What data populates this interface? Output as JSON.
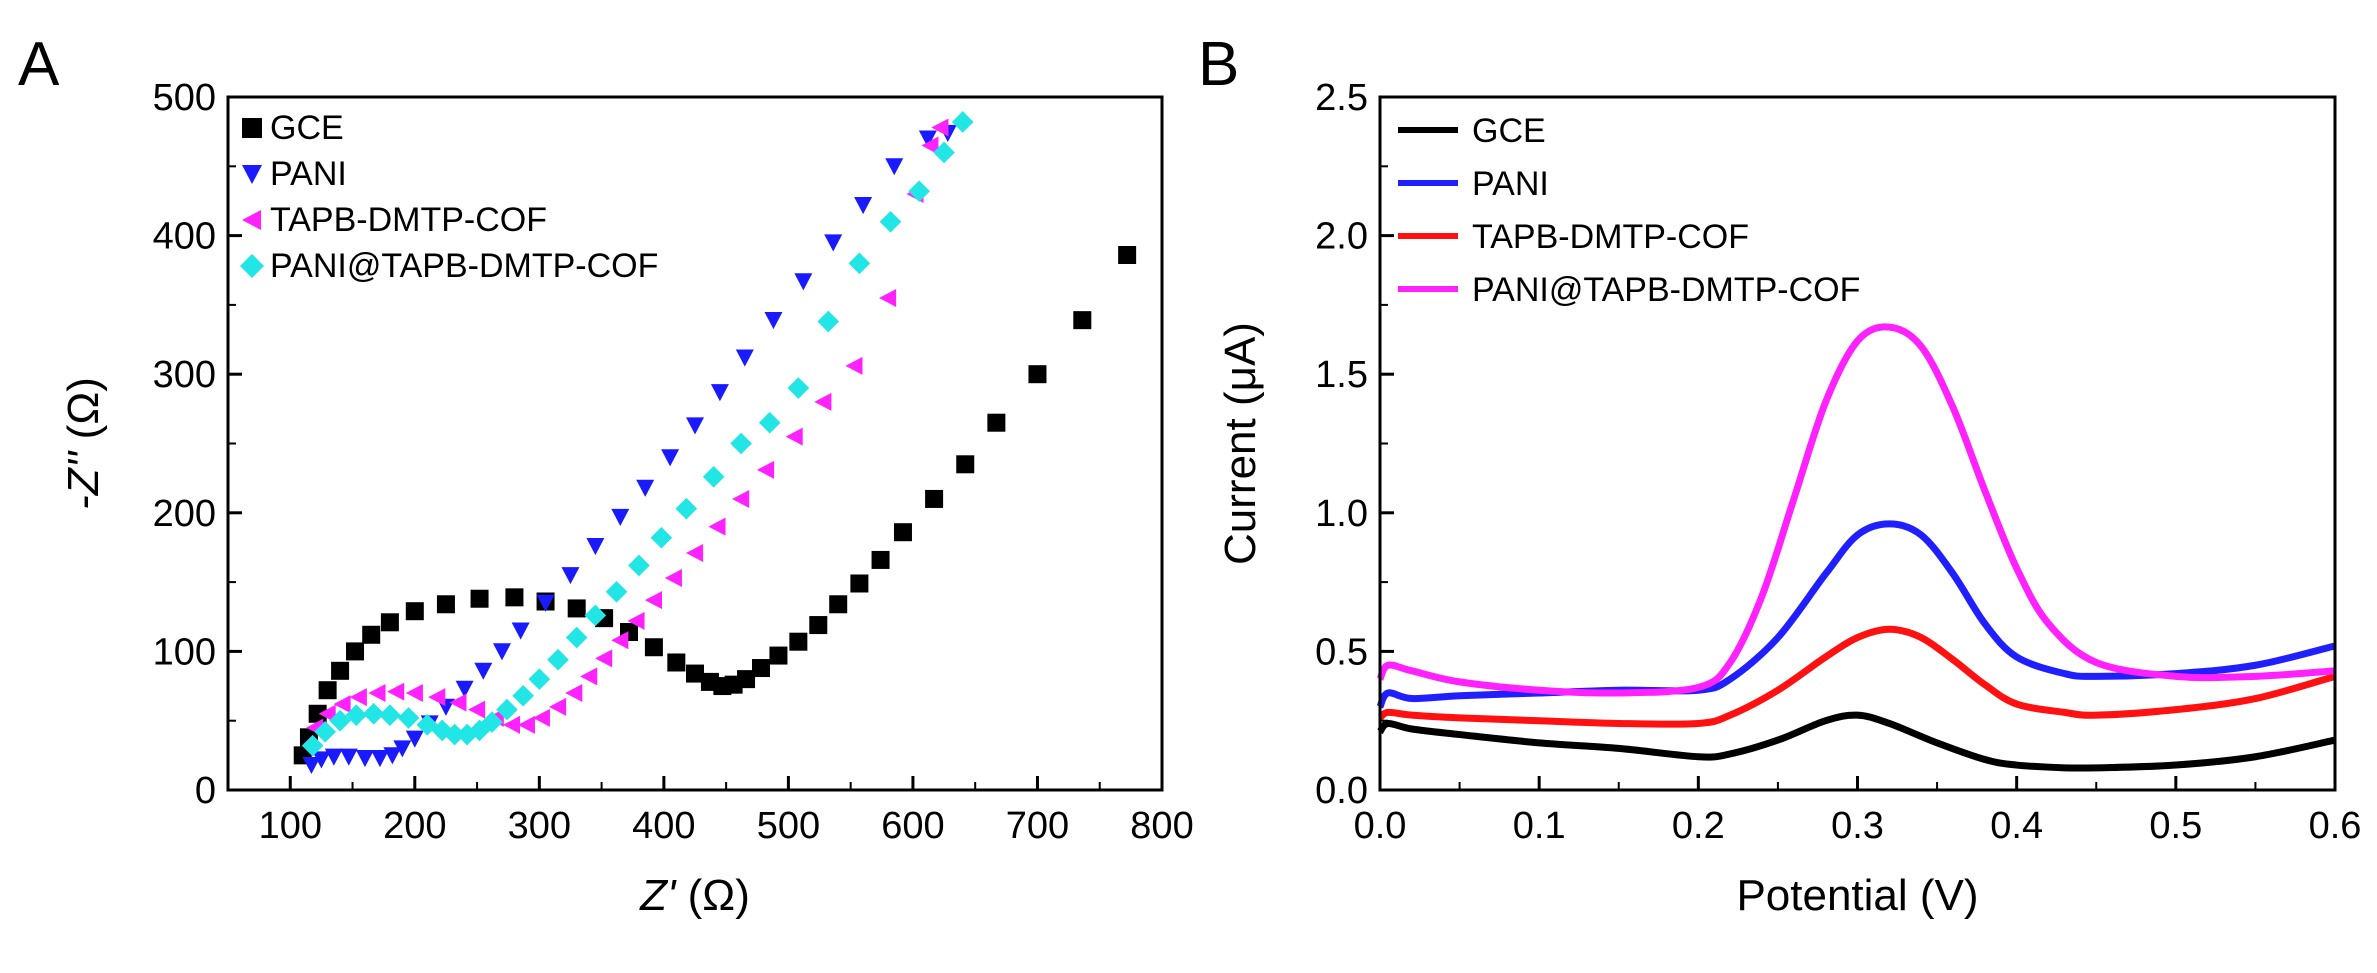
{
  "chart_data": [
    {
      "panel": "A",
      "type": "scatter",
      "xlabel_var": "Z'",
      "xlabel_unit": "(Ω)",
      "ylabel_var": "-Z''",
      "ylabel_unit": "(Ω)",
      "xlim": [
        50,
        800
      ],
      "ylim": [
        0,
        500
      ],
      "xticks": [
        "100",
        "200",
        "300",
        "400",
        "500",
        "600",
        "700",
        "800"
      ],
      "yticks": [
        "0",
        "100",
        "200",
        "300",
        "400",
        "500"
      ],
      "legend_position": "top-left",
      "series": [
        {
          "name": "GCE",
          "color": "#000000",
          "marker": "square",
          "points": [
            [
              110,
              25
            ],
            [
              115,
              38
            ],
            [
              122,
              55
            ],
            [
              130,
              72
            ],
            [
              140,
              86
            ],
            [
              152,
              100
            ],
            [
              165,
              112
            ],
            [
              180,
              121
            ],
            [
              200,
              129
            ],
            [
              225,
              134
            ],
            [
              252,
              138
            ],
            [
              280,
              139
            ],
            [
              305,
              136
            ],
            [
              330,
              131
            ],
            [
              352,
              124
            ],
            [
              372,
              114
            ],
            [
              392,
              103
            ],
            [
              410,
              92
            ],
            [
              425,
              84
            ],
            [
              437,
              78
            ],
            [
              447,
              75
            ],
            [
              456,
              76
            ],
            [
              466,
              80
            ],
            [
              478,
              88
            ],
            [
              492,
              97
            ],
            [
              508,
              107
            ],
            [
              524,
              119
            ],
            [
              540,
              134
            ],
            [
              557,
              149
            ],
            [
              574,
              166
            ],
            [
              592,
              186
            ],
            [
              617,
              210
            ],
            [
              642,
              235
            ],
            [
              667,
              265
            ],
            [
              700,
              300
            ],
            [
              736,
              339
            ],
            [
              772,
              386
            ]
          ]
        },
        {
          "name": "PANI",
          "color": "#1a1aff",
          "marker": "triangle-down",
          "points": [
            [
              117,
              18
            ],
            [
              125,
              22
            ],
            [
              135,
              24
            ],
            [
              147,
              24
            ],
            [
              160,
              23
            ],
            [
              172,
              23
            ],
            [
              182,
              25
            ],
            [
              190,
              30
            ],
            [
              200,
              37
            ],
            [
              212,
              48
            ],
            [
              225,
              60
            ],
            [
              240,
              73
            ],
            [
              255,
              86
            ],
            [
              270,
              100
            ],
            [
              285,
              115
            ],
            [
              305,
              135
            ],
            [
              325,
              155
            ],
            [
              345,
              176
            ],
            [
              365,
              197
            ],
            [
              385,
              218
            ],
            [
              405,
              240
            ],
            [
              425,
              263
            ],
            [
              445,
              287
            ],
            [
              465,
              312
            ],
            [
              488,
              339
            ],
            [
              512,
              367
            ],
            [
              536,
              395
            ],
            [
              560,
              422
            ],
            [
              585,
              450
            ],
            [
              612,
              470
            ],
            [
              628,
              474
            ]
          ]
        },
        {
          "name": "TAPB-DMTP-COF",
          "color": "#ff22ff",
          "marker": "triangle-left",
          "points": [
            [
              120,
              45
            ],
            [
              130,
              55
            ],
            [
              142,
              62
            ],
            [
              155,
              67
            ],
            [
              170,
              70
            ],
            [
              185,
              71
            ],
            [
              200,
              70
            ],
            [
              218,
              67
            ],
            [
              235,
              63
            ],
            [
              250,
              58
            ],
            [
              265,
              52
            ],
            [
              278,
              47
            ],
            [
              290,
              47
            ],
            [
              302,
              52
            ],
            [
              315,
              60
            ],
            [
              328,
              70
            ],
            [
              340,
              82
            ],
            [
              352,
              95
            ],
            [
              365,
              108
            ],
            [
              378,
              122
            ],
            [
              392,
              137
            ],
            [
              408,
              153
            ],
            [
              425,
              171
            ],
            [
              443,
              190
            ],
            [
              462,
              210
            ],
            [
              482,
              231
            ],
            [
              505,
              255
            ],
            [
              528,
              280
            ],
            [
              553,
              306
            ],
            [
              580,
              355
            ],
            [
              602,
              430
            ],
            [
              614,
              465
            ],
            [
              622,
              478
            ]
          ]
        },
        {
          "name": "PANI@TAPB-DMTP-COF",
          "color": "#22e6e6",
          "marker": "diamond",
          "points": [
            [
              118,
              32
            ],
            [
              128,
              42
            ],
            [
              140,
              50
            ],
            [
              153,
              54
            ],
            [
              167,
              55
            ],
            [
              180,
              54
            ],
            [
              195,
              52
            ],
            [
              210,
              47
            ],
            [
              222,
              43
            ],
            [
              232,
              40
            ],
            [
              242,
              40
            ],
            [
              252,
              43
            ],
            [
              262,
              49
            ],
            [
              274,
              58
            ],
            [
              287,
              68
            ],
            [
              300,
              80
            ],
            [
              315,
              94
            ],
            [
              330,
              110
            ],
            [
              345,
              126
            ],
            [
              362,
              143
            ],
            [
              380,
              162
            ],
            [
              398,
              182
            ],
            [
              418,
              203
            ],
            [
              440,
              226
            ],
            [
              462,
              250
            ],
            [
              485,
              265
            ],
            [
              508,
              290
            ],
            [
              532,
              338
            ],
            [
              557,
              380
            ],
            [
              582,
              410
            ],
            [
              605,
              432
            ],
            [
              625,
              460
            ],
            [
              640,
              482
            ]
          ]
        }
      ]
    },
    {
      "panel": "B",
      "type": "line",
      "xlabel": "Potential (V)",
      "ylabel": "Current (μA)",
      "xlim": [
        0,
        0.6
      ],
      "ylim": [
        0,
        2.5
      ],
      "xticks": [
        "0.0",
        "0.1",
        "0.2",
        "0.3",
        "0.4",
        "0.5",
        "0.6"
      ],
      "yticks": [
        "0.0",
        "0.5",
        "1.0",
        "1.5",
        "2.0",
        "2.5"
      ],
      "legend_position": "top-left",
      "series": [
        {
          "name": "GCE",
          "color": "#000000",
          "x": [
            0,
            0.005,
            0.02,
            0.05,
            0.1,
            0.15,
            0.2,
            0.22,
            0.25,
            0.28,
            0.3,
            0.32,
            0.35,
            0.38,
            0.4,
            0.43,
            0.45,
            0.5,
            0.55,
            0.6
          ],
          "y": [
            0.21,
            0.24,
            0.22,
            0.2,
            0.17,
            0.15,
            0.12,
            0.13,
            0.18,
            0.25,
            0.27,
            0.24,
            0.17,
            0.11,
            0.09,
            0.08,
            0.08,
            0.09,
            0.12,
            0.18
          ]
        },
        {
          "name": "PANI",
          "color": "#1f1fff",
          "x": [
            0,
            0.005,
            0.02,
            0.05,
            0.1,
            0.15,
            0.2,
            0.22,
            0.25,
            0.28,
            0.3,
            0.32,
            0.34,
            0.36,
            0.38,
            0.4,
            0.43,
            0.45,
            0.5,
            0.55,
            0.6
          ],
          "y": [
            0.3,
            0.35,
            0.33,
            0.34,
            0.35,
            0.36,
            0.36,
            0.4,
            0.55,
            0.78,
            0.92,
            0.96,
            0.92,
            0.78,
            0.6,
            0.48,
            0.42,
            0.41,
            0.42,
            0.45,
            0.52
          ]
        },
        {
          "name": "TAPB-DMTP-COF",
          "color": "#ff1111",
          "x": [
            0,
            0.005,
            0.02,
            0.05,
            0.1,
            0.15,
            0.2,
            0.22,
            0.25,
            0.28,
            0.3,
            0.32,
            0.34,
            0.36,
            0.38,
            0.4,
            0.43,
            0.45,
            0.5,
            0.55,
            0.6
          ],
          "y": [
            0.26,
            0.28,
            0.27,
            0.26,
            0.25,
            0.24,
            0.24,
            0.27,
            0.36,
            0.48,
            0.55,
            0.58,
            0.55,
            0.47,
            0.38,
            0.31,
            0.28,
            0.27,
            0.29,
            0.33,
            0.41
          ]
        },
        {
          "name": "PANI@TAPB-DMTP-COF",
          "color": "#ff22ff",
          "x": [
            0,
            0.005,
            0.02,
            0.05,
            0.1,
            0.15,
            0.2,
            0.22,
            0.24,
            0.26,
            0.28,
            0.3,
            0.32,
            0.34,
            0.36,
            0.38,
            0.4,
            0.42,
            0.45,
            0.5,
            0.55,
            0.6
          ],
          "y": [
            0.4,
            0.45,
            0.43,
            0.39,
            0.36,
            0.35,
            0.37,
            0.46,
            0.7,
            1.05,
            1.4,
            1.62,
            1.67,
            1.6,
            1.38,
            1.08,
            0.8,
            0.6,
            0.46,
            0.41,
            0.41,
            0.43
          ]
        }
      ]
    }
  ]
}
